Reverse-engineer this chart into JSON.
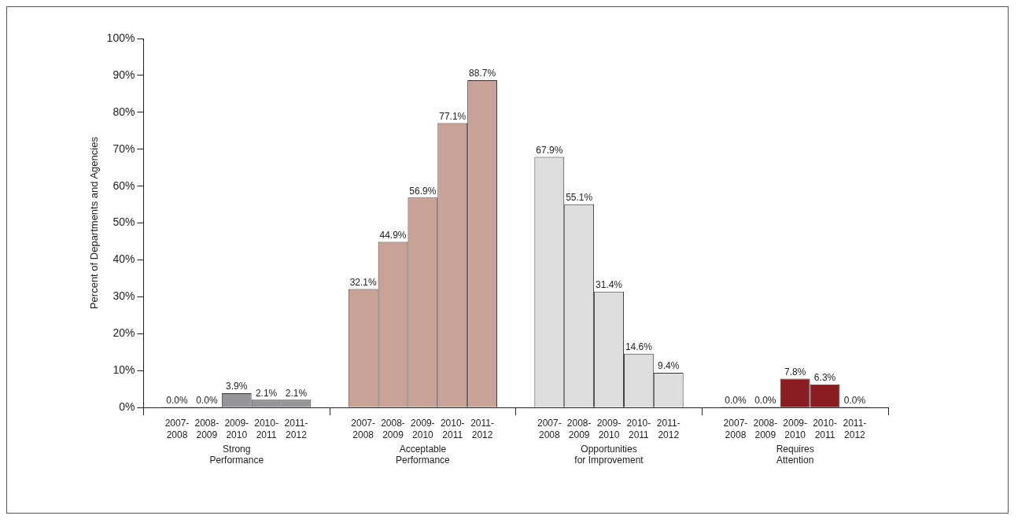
{
  "chart_data": {
    "type": "bar",
    "ylabel": "Percent of Departments and Agencies",
    "categories": [
      "Strong Performance",
      "Acceptable Performance",
      "Opportunities for Improvement",
      "Requires Attention"
    ],
    "series": [
      {
        "name": "2007-2008",
        "colors": [
          "#939598",
          "#c9a297",
          "#dcdddf",
          "#8a1c22"
        ],
        "values": [
          0,
          32.1,
          67.9,
          0
        ],
        "value_labels": [
          "0.0%",
          "32.1%",
          "67.9%",
          "0.0%"
        ]
      },
      {
        "name": "2008-2009",
        "colors": [
          "#939598",
          "#c9a297",
          "#dcdddf",
          "#8a1c22"
        ],
        "values": [
          0,
          44.9,
          55.1,
          0
        ],
        "value_labels": [
          "0.0%",
          "44.9%",
          "55.1%",
          "0.0%"
        ]
      },
      {
        "name": "2009-2010",
        "colors": [
          "#939598",
          "#c9a297",
          "#dcdddf",
          "#8a1c22"
        ],
        "values": [
          3.9,
          56.9,
          31.4,
          7.8
        ],
        "value_labels": [
          "3.9%",
          "56.9%",
          "31.4%",
          "7.8%"
        ]
      },
      {
        "name": "2010-2011",
        "colors": [
          "#939598",
          "#c9a297",
          "#dcdddf",
          "#8a1c22"
        ],
        "values": [
          2.1,
          77.1,
          14.6,
          6.3
        ],
        "value_labels": [
          "2.1%",
          "77.1%",
          "14.6%",
          "6.3%"
        ]
      },
      {
        "name": "2011-2012",
        "colors": [
          "#939598",
          "#c9a297",
          "#dcdddf",
          "#8a1c22"
        ],
        "values": [
          2.1,
          88.7,
          9.4,
          0
        ],
        "value_labels": [
          "2.1%",
          "88.7%",
          "9.4%",
          "0.0%"
        ]
      }
    ],
    "ylim": [
      0,
      100
    ],
    "yticks": [
      {
        "value": 0,
        "label": "0%"
      },
      {
        "value": 10,
        "label": "10%"
      },
      {
        "value": 20,
        "label": "20%"
      },
      {
        "value": 30,
        "label": "30%"
      },
      {
        "value": 40,
        "label": "40%"
      },
      {
        "value": 50,
        "label": "50%"
      },
      {
        "value": 60,
        "label": "60%"
      },
      {
        "value": 70,
        "label": "70%"
      },
      {
        "value": 80,
        "label": "80%"
      },
      {
        "value": 90,
        "label": "90%"
      },
      {
        "value": 100,
        "label": "100%"
      }
    ],
    "grid": false,
    "legend": false
  }
}
